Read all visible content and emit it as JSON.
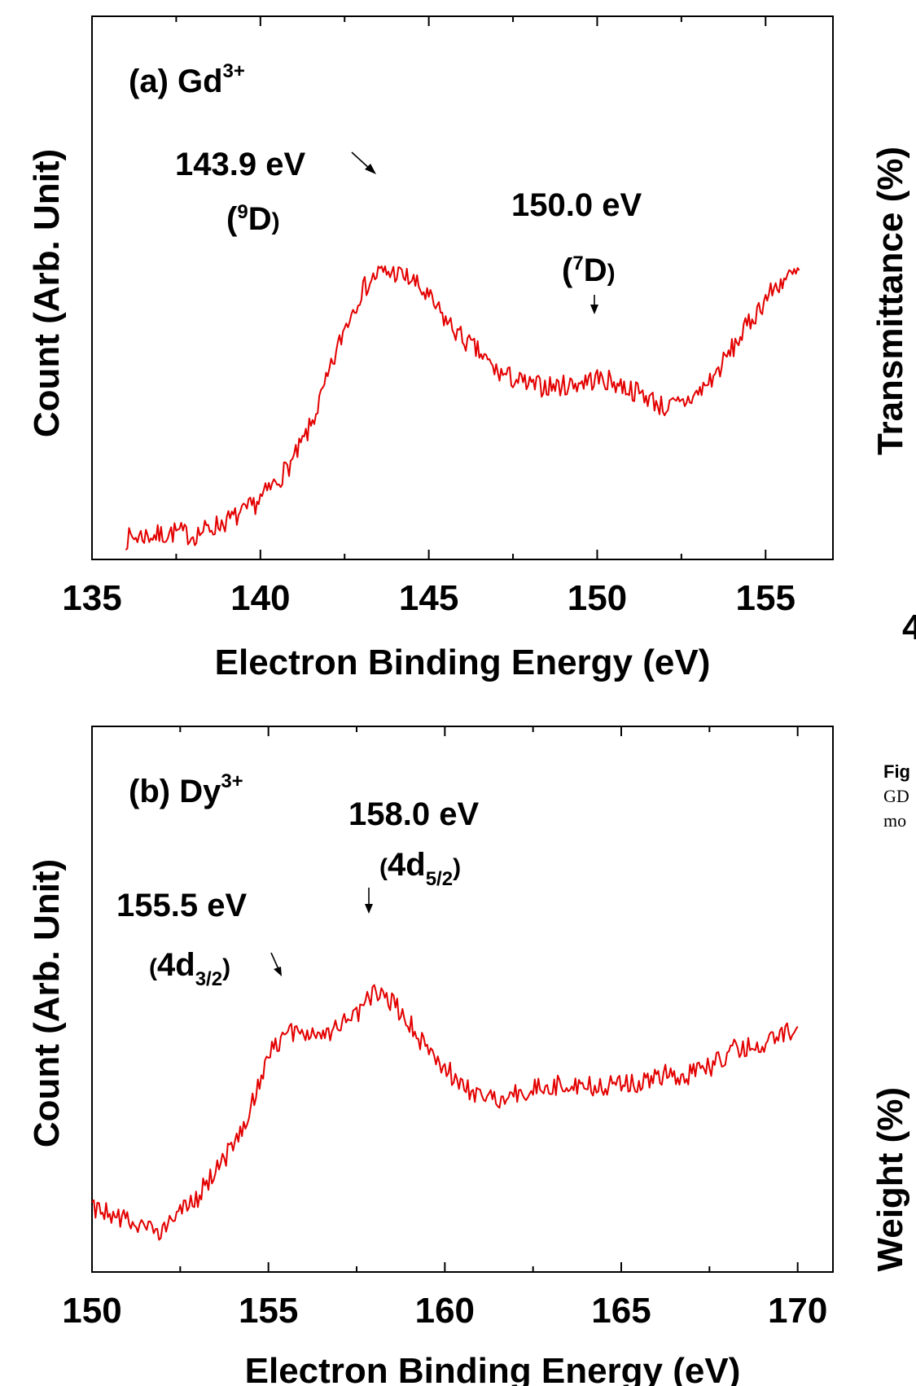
{
  "chart_data": [
    {
      "type": "line",
      "panel_title": "(a) Gd",
      "panel_title_sup": "3+",
      "xlabel": "Electron Binding Energy (eV)",
      "ylabel": "Count (Arb. Unit)",
      "xlim": [
        135,
        157
      ],
      "ylim": [
        0,
        1
      ],
      "x_ticks": [
        135,
        140,
        145,
        150,
        155
      ],
      "grid": false,
      "color": "#e30000",
      "series": [
        {
          "x": [
            136.0,
            136.5,
            137.0,
            137.5,
            138.0,
            138.5,
            139.0,
            139.5,
            140.0,
            140.5,
            141.0,
            141.5,
            142.0,
            142.5,
            143.0,
            143.5,
            144.0,
            144.5,
            145.0,
            145.5,
            146.0,
            146.5,
            147.0,
            147.5,
            148.0,
            148.5,
            149.0,
            149.5,
            150.0,
            150.5,
            151.0,
            151.5,
            152.0,
            152.5,
            153.0,
            153.5,
            154.0,
            154.5,
            155.0,
            155.5,
            156.0
          ],
          "values": [
            0.04,
            0.05,
            0.05,
            0.06,
            0.05,
            0.07,
            0.09,
            0.11,
            0.15,
            0.2,
            0.26,
            0.35,
            0.48,
            0.62,
            0.72,
            0.77,
            0.77,
            0.75,
            0.7,
            0.64,
            0.59,
            0.55,
            0.5,
            0.48,
            0.46,
            0.46,
            0.46,
            0.47,
            0.48,
            0.47,
            0.45,
            0.43,
            0.4,
            0.41,
            0.44,
            0.49,
            0.56,
            0.63,
            0.7,
            0.75,
            0.77
          ]
        }
      ],
      "annotations": [
        {
          "text": "143.9 eV",
          "label_main": "D",
          "label_sup": "9",
          "x": 143.9
        },
        {
          "text": "150.0 eV",
          "label_main": "D",
          "label_sup": "7",
          "x": 150.0
        }
      ]
    },
    {
      "type": "line",
      "panel_title": "(b) Dy",
      "panel_title_sup": "3+",
      "xlabel": "Electron Binding Energy (eV)",
      "ylabel": "Count (Arb. Unit)",
      "xlim": [
        150,
        171
      ],
      "ylim": [
        0,
        1
      ],
      "x_ticks": [
        150,
        155,
        160,
        165,
        170
      ],
      "grid": false,
      "color": "#e30000",
      "series": [
        {
          "x": [
            150.0,
            150.5,
            151.0,
            151.5,
            152.0,
            152.5,
            153.0,
            153.5,
            154.0,
            154.5,
            155.0,
            155.5,
            156.0,
            156.5,
            157.0,
            157.5,
            158.0,
            158.5,
            159.0,
            159.5,
            160.0,
            160.5,
            161.0,
            161.5,
            162.0,
            162.5,
            163.0,
            163.5,
            164.0,
            164.5,
            165.0,
            165.5,
            166.0,
            166.5,
            167.0,
            167.5,
            168.0,
            168.5,
            169.0,
            169.5,
            170.0
          ],
          "values": [
            0.12,
            0.1,
            0.08,
            0.05,
            0.06,
            0.1,
            0.15,
            0.22,
            0.29,
            0.4,
            0.55,
            0.6,
            0.61,
            0.59,
            0.62,
            0.66,
            0.72,
            0.69,
            0.63,
            0.56,
            0.51,
            0.46,
            0.43,
            0.42,
            0.44,
            0.45,
            0.46,
            0.46,
            0.46,
            0.45,
            0.47,
            0.47,
            0.49,
            0.49,
            0.49,
            0.51,
            0.55,
            0.57,
            0.58,
            0.6,
            0.61
          ]
        }
      ],
      "annotations": [
        {
          "text": "155.5 eV",
          "label_main": "4d",
          "label_sub": "3/2",
          "x": 155.5
        },
        {
          "text": "158.0 eV",
          "label_main": "4d",
          "label_sub": "5/2",
          "x": 158.0
        }
      ]
    }
  ],
  "right_panel": {
    "transmittance_label": "Transmittance (%)",
    "weight_label": "Weight (%)",
    "axis_tick_fragment": "4",
    "caption_bold": "Fig",
    "caption_line1": "GD",
    "caption_line2": "mo"
  }
}
